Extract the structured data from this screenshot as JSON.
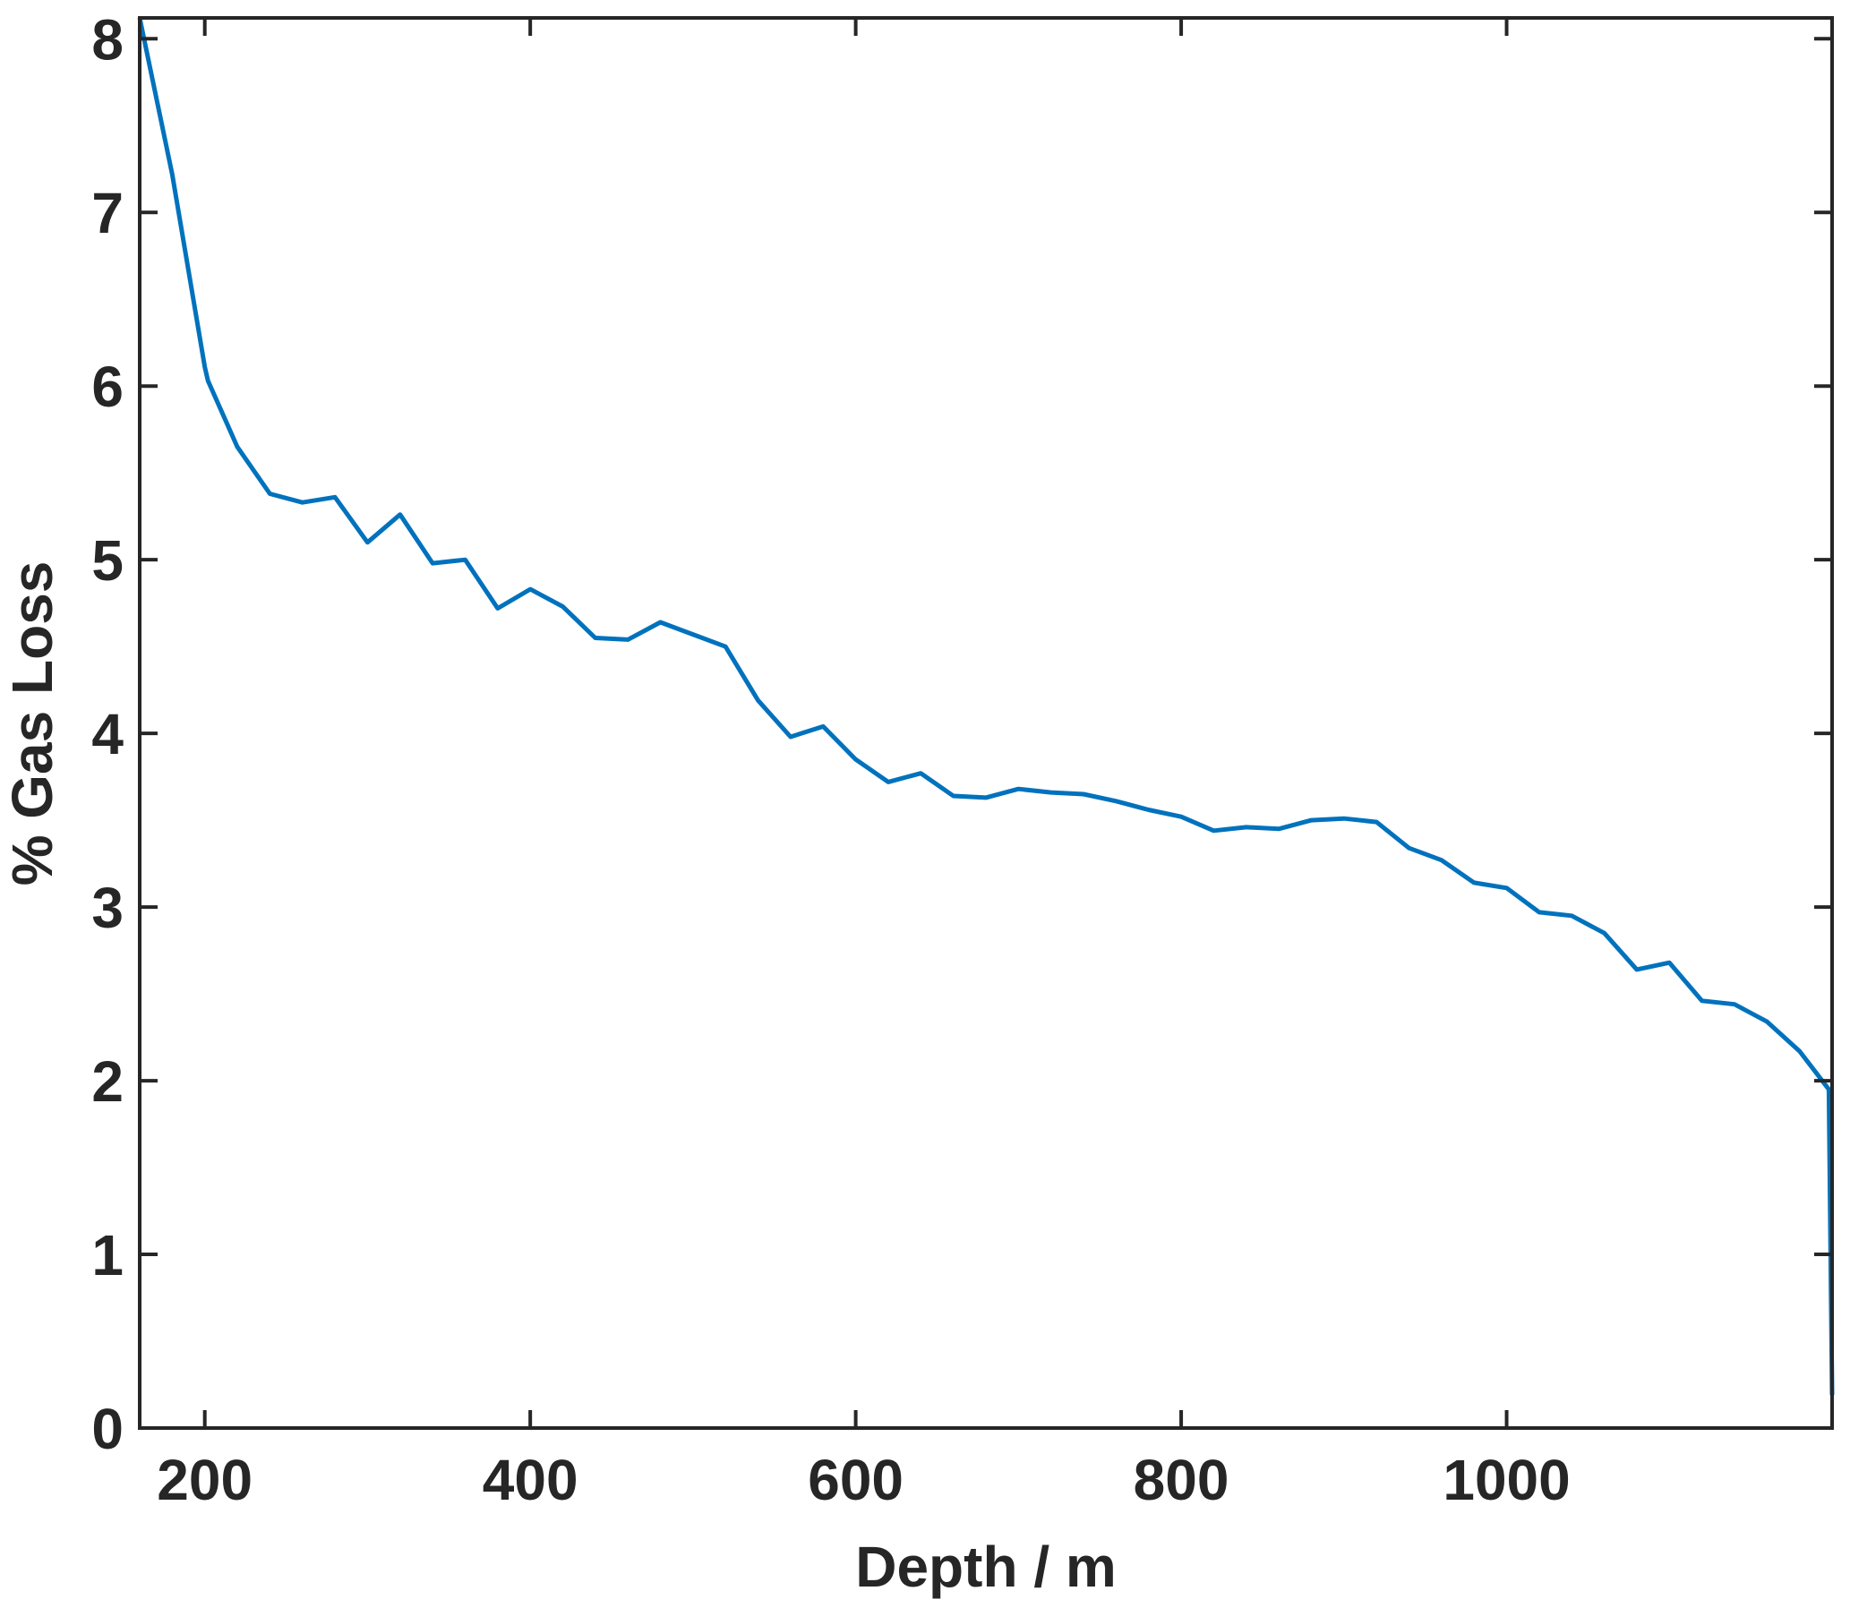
{
  "chart_data": {
    "type": "line",
    "x_label": "Depth / m",
    "y_label": "% Gas Loss",
    "xlim": [
      160,
      1200
    ],
    "ylim": [
      0,
      8.12
    ],
    "xticks": [
      200,
      400,
      600,
      800,
      1000
    ],
    "yticks": [
      0,
      1,
      2,
      3,
      4,
      5,
      6,
      7,
      8
    ],
    "series": [
      {
        "color": "#0072bd",
        "x": [
          160,
          180,
          200,
          202,
          220,
          240,
          260,
          280,
          300,
          320,
          340,
          360,
          380,
          400,
          420,
          440,
          460,
          480,
          500,
          520,
          540,
          560,
          580,
          600,
          620,
          640,
          660,
          680,
          700,
          720,
          740,
          760,
          780,
          800,
          820,
          840,
          860,
          880,
          900,
          920,
          940,
          960,
          980,
          1000,
          1020,
          1040,
          1060,
          1080,
          1100,
          1120,
          1140,
          1160,
          1180,
          1198,
          1200
        ],
        "values": [
          8.12,
          7.22,
          6.11,
          6.03,
          5.65,
          5.38,
          5.33,
          5.36,
          5.1,
          5.26,
          4.98,
          5.0,
          4.72,
          4.83,
          4.73,
          4.55,
          4.54,
          4.64,
          4.57,
          4.5,
          4.19,
          3.98,
          4.04,
          3.85,
          3.72,
          3.77,
          3.64,
          3.63,
          3.68,
          3.66,
          3.65,
          3.61,
          3.56,
          3.52,
          3.44,
          3.46,
          3.45,
          3.5,
          3.51,
          3.49,
          3.34,
          3.27,
          3.14,
          3.11,
          2.97,
          2.95,
          2.85,
          2.64,
          2.68,
          2.46,
          2.44,
          2.34,
          2.17,
          1.95,
          0.19
        ]
      }
    ]
  }
}
